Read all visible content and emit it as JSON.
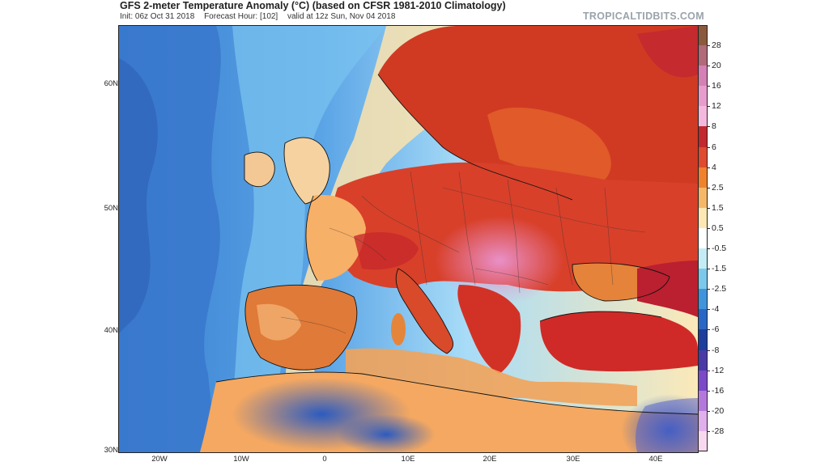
{
  "header": {
    "title": "GFS 2-meter Temperature Anomaly (°C) (based on CFSR 1981-2010 Climatology)",
    "init": "Init: 06z Oct 31 2018",
    "forecast_hour": "Forecast Hour: [102]",
    "valid": "valid at 12z Sun, Nov 04 2018",
    "brand": "TROPICALTIDBITS.COM"
  },
  "map": {
    "region": "Europe, North Africa and the eastern North Atlantic",
    "lat_labels": [
      "60N",
      "50N",
      "40N",
      "30N"
    ],
    "lon_labels": [
      "20W",
      "10W",
      "0",
      "10E",
      "20E",
      "30E",
      "40E"
    ],
    "colors": {
      "ocean_cold": "#3a7fd0",
      "ocean_mid": "#6fb6ee",
      "ocean_cool": "#a8dcf7",
      "near_zero": "#fbe9b8",
      "warm_land": "#e8672a",
      "hot_land": "#c8281c",
      "very_hot": "#e687c6",
      "cold_desert": "#4a72cc"
    }
  },
  "colorbar": {
    "labels": [
      "28",
      "20",
      "16",
      "12",
      "8",
      "6",
      "4",
      "2.5",
      "1.5",
      "0.5",
      "-0.5",
      "-1.5",
      "-2.5",
      "-4",
      "-6",
      "-8",
      "-12",
      "-16",
      "-20",
      "-28"
    ],
    "colors": [
      "#8b5a3c",
      "#b06a7a",
      "#d580b4",
      "#e89cce",
      "#f4b8de",
      "#c2282e",
      "#e04a2e",
      "#f0822e",
      "#f6b868",
      "#fde8b4",
      "#ffffff",
      "#c4ecf4",
      "#7cc8ec",
      "#3f94dc",
      "#2a66c6",
      "#1d3e9c",
      "#4a3aa8",
      "#7a4ac8",
      "#b478dc",
      "#e0b0ec",
      "#f8d8f0"
    ]
  }
}
